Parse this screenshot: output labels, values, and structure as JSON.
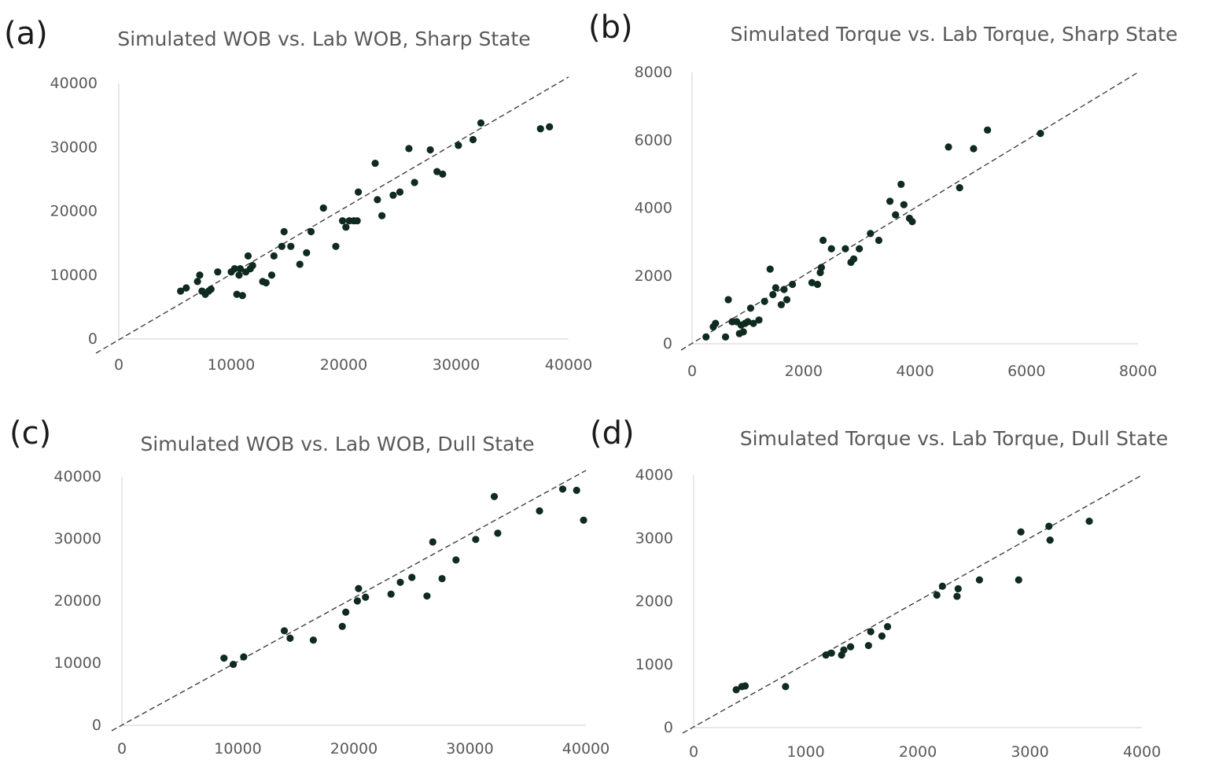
{
  "chart_data": [
    {
      "panel": "(a)",
      "type": "scatter",
      "title": "Simulated WOB vs. Lab WOB, Sharp State",
      "xlabel": "",
      "ylabel": "",
      "xlim": [
        0,
        40000
      ],
      "ylim": [
        0,
        40000
      ],
      "xticks": [
        0,
        10000,
        20000,
        30000,
        40000
      ],
      "yticks": [
        0,
        10000,
        20000,
        30000,
        40000
      ],
      "xtick_labels": [
        "0",
        "10000",
        "20000",
        "30000",
        "40000"
      ],
      "ytick_labels": [
        "0",
        "10000",
        "20000",
        "30000",
        "40000"
      ],
      "trendline": {
        "style": "dashed",
        "from": [
          0,
          0
        ],
        "to": [
          40000,
          41000
        ]
      },
      "points": [
        [
          5500,
          7500
        ],
        [
          6000,
          8000
        ],
        [
          7000,
          9000
        ],
        [
          7200,
          10000
        ],
        [
          7400,
          7500
        ],
        [
          7700,
          7000
        ],
        [
          8000,
          7500
        ],
        [
          8200,
          7800
        ],
        [
          8800,
          10500
        ],
        [
          10000,
          10500
        ],
        [
          10300,
          11000
        ],
        [
          10500,
          7000
        ],
        [
          10700,
          10000
        ],
        [
          10800,
          11000
        ],
        [
          11000,
          6800
        ],
        [
          11300,
          10500
        ],
        [
          11500,
          13000
        ],
        [
          11700,
          11000
        ],
        [
          11900,
          11500
        ],
        [
          12800,
          9000
        ],
        [
          13100,
          8800
        ],
        [
          13600,
          10000
        ],
        [
          13800,
          13000
        ],
        [
          14500,
          14500
        ],
        [
          14700,
          16800
        ],
        [
          15300,
          14500
        ],
        [
          16100,
          11700
        ],
        [
          16700,
          13500
        ],
        [
          17100,
          16800
        ],
        [
          18200,
          20500
        ],
        [
          19300,
          14500
        ],
        [
          19900,
          18500
        ],
        [
          20200,
          17500
        ],
        [
          20500,
          18500
        ],
        [
          20900,
          18500
        ],
        [
          21200,
          18500
        ],
        [
          21300,
          23000
        ],
        [
          22800,
          27500
        ],
        [
          23000,
          21800
        ],
        [
          23400,
          19300
        ],
        [
          24400,
          22500
        ],
        [
          25000,
          23000
        ],
        [
          25800,
          29800
        ],
        [
          26300,
          24500
        ],
        [
          27700,
          29600
        ],
        [
          28300,
          26200
        ],
        [
          28800,
          25800
        ],
        [
          30200,
          30300
        ],
        [
          31500,
          31200
        ],
        [
          32200,
          33800
        ],
        [
          37500,
          32900
        ],
        [
          38300,
          33200
        ]
      ]
    },
    {
      "panel": "(b)",
      "type": "scatter",
      "title": "Simulated Torque vs. Lab Torque, Sharp State",
      "xlabel": "",
      "ylabel": "",
      "xlim": [
        0,
        8000
      ],
      "ylim": [
        0,
        8000
      ],
      "xticks": [
        0,
        2000,
        4000,
        6000,
        8000
      ],
      "yticks": [
        0,
        2000,
        4000,
        6000,
        8000
      ],
      "xtick_labels": [
        "0",
        "2000",
        "4000",
        "6000",
        "8000"
      ],
      "ytick_labels": [
        "0",
        "2000",
        "4000",
        "6000",
        "8000"
      ],
      "trendline": {
        "style": "dashed",
        "from": [
          0,
          0
        ],
        "to": [
          8000,
          8000
        ]
      },
      "points": [
        [
          250,
          200
        ],
        [
          380,
          500
        ],
        [
          420,
          600
        ],
        [
          600,
          200
        ],
        [
          650,
          1300
        ],
        [
          720,
          650
        ],
        [
          800,
          650
        ],
        [
          850,
          300
        ],
        [
          880,
          550
        ],
        [
          920,
          350
        ],
        [
          950,
          600
        ],
        [
          1000,
          650
        ],
        [
          1050,
          1050
        ],
        [
          1100,
          600
        ],
        [
          1200,
          700
        ],
        [
          1300,
          1250
        ],
        [
          1400,
          2200
        ],
        [
          1450,
          1450
        ],
        [
          1500,
          1650
        ],
        [
          1600,
          1150
        ],
        [
          1650,
          1600
        ],
        [
          1700,
          1300
        ],
        [
          1800,
          1750
        ],
        [
          2150,
          1800
        ],
        [
          2250,
          1750
        ],
        [
          2300,
          2100
        ],
        [
          2320,
          2250
        ],
        [
          2350,
          3050
        ],
        [
          2500,
          2800
        ],
        [
          2750,
          2800
        ],
        [
          2850,
          2400
        ],
        [
          2900,
          2500
        ],
        [
          3000,
          2800
        ],
        [
          3200,
          3250
        ],
        [
          3350,
          3050
        ],
        [
          3550,
          4200
        ],
        [
          3650,
          3800
        ],
        [
          3750,
          4700
        ],
        [
          3800,
          4100
        ],
        [
          3900,
          3700
        ],
        [
          3950,
          3600
        ],
        [
          4600,
          5800
        ],
        [
          4800,
          4600
        ],
        [
          5050,
          5750
        ],
        [
          5300,
          6300
        ],
        [
          6250,
          6200
        ]
      ]
    },
    {
      "panel": "(c)",
      "type": "scatter",
      "title": "Simulated WOB vs. Lab WOB, Dull State",
      "xlabel": "",
      "ylabel": "",
      "xlim": [
        0,
        40000
      ],
      "ylim": [
        0,
        40000
      ],
      "xticks": [
        0,
        10000,
        20000,
        30000,
        40000
      ],
      "yticks": [
        0,
        10000,
        20000,
        30000,
        40000
      ],
      "xtick_labels": [
        "0",
        "10000",
        "20000",
        "30000",
        "40000"
      ],
      "ytick_labels": [
        "0",
        "10000",
        "20000",
        "30000",
        "40000"
      ],
      "trendline": {
        "style": "dashed",
        "from": [
          0,
          0
        ],
        "to": [
          40000,
          41000
        ]
      },
      "points": [
        [
          8800,
          10800
        ],
        [
          9600,
          9800
        ],
        [
          10500,
          11000
        ],
        [
          14000,
          15200
        ],
        [
          14500,
          14000
        ],
        [
          16500,
          13700
        ],
        [
          19000,
          15900
        ],
        [
          19300,
          18200
        ],
        [
          20300,
          20000
        ],
        [
          20400,
          22000
        ],
        [
          21000,
          20600
        ],
        [
          23200,
          21100
        ],
        [
          24000,
          23000
        ],
        [
          25000,
          23800
        ],
        [
          26300,
          20800
        ],
        [
          26800,
          29500
        ],
        [
          27600,
          23600
        ],
        [
          28800,
          26600
        ],
        [
          30500,
          29900
        ],
        [
          32100,
          36800
        ],
        [
          32400,
          30900
        ],
        [
          36000,
          34500
        ],
        [
          38000,
          38000
        ],
        [
          39200,
          37800
        ],
        [
          39800,
          33000
        ]
      ]
    },
    {
      "panel": "(d)",
      "type": "scatter",
      "title": "Simulated Torque vs. Lab Torque, Dull State",
      "xlabel": "",
      "ylabel": "",
      "xlim": [
        0,
        4000
      ],
      "ylim": [
        0,
        4000
      ],
      "xticks": [
        0,
        1000,
        2000,
        3000,
        4000
      ],
      "yticks": [
        0,
        1000,
        2000,
        3000,
        4000
      ],
      "xtick_labels": [
        "0",
        "1000",
        "2000",
        "3000",
        "4000"
      ],
      "ytick_labels": [
        "0",
        "1000",
        "2000",
        "3000",
        "4000"
      ],
      "trendline": {
        "style": "dashed",
        "from": [
          0,
          0
        ],
        "to": [
          4000,
          4000
        ]
      },
      "points": [
        [
          380,
          600
        ],
        [
          430,
          650
        ],
        [
          460,
          660
        ],
        [
          820,
          650
        ],
        [
          1180,
          1150
        ],
        [
          1230,
          1180
        ],
        [
          1320,
          1150
        ],
        [
          1340,
          1230
        ],
        [
          1400,
          1280
        ],
        [
          1560,
          1300
        ],
        [
          1580,
          1520
        ],
        [
          1680,
          1450
        ],
        [
          1730,
          1600
        ],
        [
          2170,
          2100
        ],
        [
          2220,
          2240
        ],
        [
          2350,
          2080
        ],
        [
          2360,
          2200
        ],
        [
          2550,
          2340
        ],
        [
          2900,
          2340
        ],
        [
          2920,
          3100
        ],
        [
          3170,
          3190
        ],
        [
          3180,
          2970
        ],
        [
          3530,
          3270
        ]
      ]
    }
  ]
}
